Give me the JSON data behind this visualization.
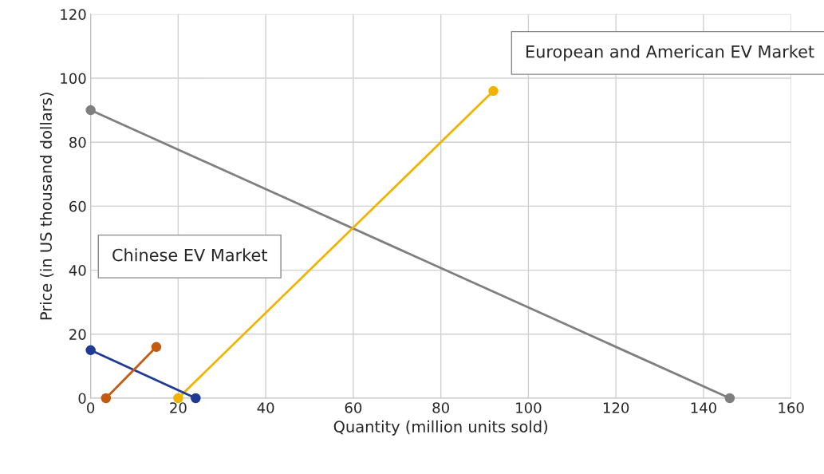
{
  "chart_data": {
    "type": "line",
    "xlabel": "Quantity (million units sold)",
    "ylabel": "Price (in US thousand dollars)",
    "xlim": [
      0,
      160
    ],
    "xticks": [
      0,
      20,
      40,
      60,
      80,
      100,
      120,
      140,
      160
    ],
    "ylim": [
      0,
      120
    ],
    "yticks": [
      0,
      20,
      40,
      60,
      80,
      100,
      120
    ],
    "grid": true,
    "legend": false,
    "marker": "circle",
    "line_style": "solid",
    "series": [
      {
        "color": "#7f7f7f",
        "x": [
          0,
          146
        ],
        "values": [
          90,
          0
        ]
      },
      {
        "color": "#f0b400",
        "x": [
          20,
          92
        ],
        "values": [
          0,
          96
        ]
      },
      {
        "color": "#1f3a93",
        "x": [
          0,
          24
        ],
        "values": [
          15,
          0
        ]
      },
      {
        "color": "#c55a11",
        "x": [
          3.5,
          15
        ],
        "values": [
          0,
          16
        ]
      }
    ],
    "annotations": [
      "European and American EV Market",
      "Chinese EV Market"
    ]
  }
}
